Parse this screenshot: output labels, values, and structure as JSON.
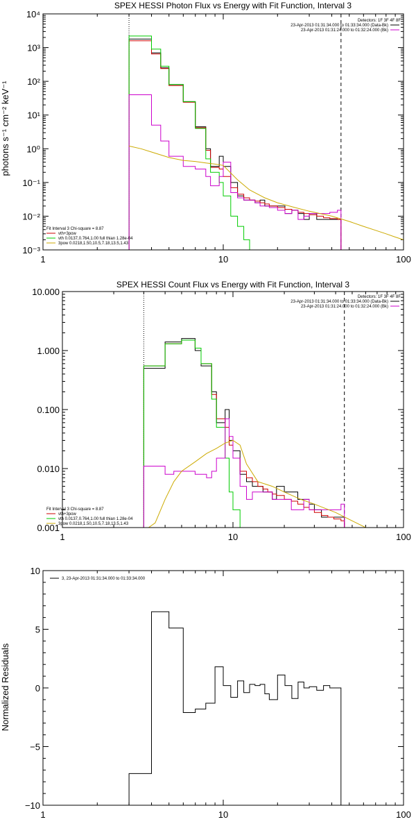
{
  "chart_data": [
    {
      "type": "line",
      "title": "SPEX HESSI Photon Flux vs Energy with Fit Function, Interval 3",
      "xlabel": "",
      "ylabel": "photons s⁻¹ cm⁻² keV⁻¹",
      "xscale": "log",
      "yscale": "log",
      "xlim": [
        1,
        100
      ],
      "ylim": [
        0.001,
        10000
      ],
      "x_ticks": [
        1,
        10,
        100
      ],
      "x_tick_labels": [
        "1",
        "10",
        "100"
      ],
      "y_ticks": [
        0.001,
        0.01,
        0.1,
        1,
        10,
        100,
        1000,
        10000
      ],
      "y_tick_labels": [
        "10⁻³",
        "10⁻²",
        "10⁻¹",
        "10⁰",
        "10¹",
        "10²",
        "10³",
        "10⁴"
      ],
      "vlines": [
        {
          "x": 3.0,
          "style": "dotted"
        },
        {
          "x": 45.0,
          "style": "dashed"
        }
      ],
      "legend_top_right": [
        "Detectors: 1F 3F 4F 8F",
        "23-Apr-2013 01:31:34.000 to 01:33:34.000 (Data-Bk)",
        "23-Apr-2013 01:31:24.000 to 01:32:24.000 (Bk)"
      ],
      "legend_top_right_colors": [
        "#000000",
        "#000000",
        "#cc00cc"
      ],
      "legend_bottom_left": {
        "header": "Fit Interval 3   Chi-square = 8.87",
        "items": [
          {
            "label": "vth+3pow",
            "color": "#cc0000"
          },
          {
            "label": "vth 0.0137,0.764,1.00  full thian 1.28e-04",
            "color": "#00cc00"
          },
          {
            "label": "3pow 0.0218,1.50,10.5,7.18,13.5,1.43",
            "color": "#ccaa00"
          }
        ]
      },
      "edges": [
        3.0,
        3.5,
        4.0,
        4.5,
        5.0,
        5.5,
        6.0,
        6.5,
        7.0,
        7.5,
        8.0,
        8.5,
        9.0,
        9.5,
        10.0,
        11.0,
        12.0,
        13.0,
        14.0,
        15.0,
        16.0,
        17.0,
        18.0,
        20.0,
        22.0,
        24.0,
        26.0,
        28.0,
        30.0,
        33.0,
        36.0,
        39.0,
        43.0,
        45.0
      ],
      "series": [
        {
          "name": "",
          "color": "#000000",
          "values": [
            1800,
            1800,
            700,
            250,
            80,
            80,
            25,
            25,
            4.5,
            4.5,
            1.0,
            0.3,
            0.3,
            0.6,
            0.3,
            0.1,
            0.04,
            0.03,
            0.03,
            0.025,
            0.03,
            0.02,
            0.02,
            0.02,
            0.012,
            0.015,
            0.012,
            0.008,
            0.012,
            0.008,
            0.008,
            0.008,
            0.008
          ]
        },
        {
          "name": "",
          "color": "#cc0000",
          "values": [
            1600,
            1600,
            650,
            240,
            75,
            75,
            24,
            24,
            4.2,
            4.2,
            0.9,
            0.28,
            0.28,
            0.25,
            0.15,
            0.07,
            0.045,
            0.035,
            0.03,
            0.028,
            0.025,
            0.023,
            0.02,
            0.018,
            0.016,
            0.015,
            0.013,
            0.012,
            0.011,
            0.01,
            0.009,
            0.0085,
            0.008
          ]
        },
        {
          "name": "",
          "color": "#00cc00",
          "values": [
            2200,
            2200,
            900,
            280,
            80,
            80,
            25,
            25,
            4.0,
            4.0,
            0.5,
            0.2,
            0.2,
            0.1,
            0.04,
            0.01,
            0.005,
            0.002,
            0.001
          ]
        },
        {
          "name": "",
          "color": "#cc00cc",
          "values": [
            40,
            40,
            5.0,
            1.7,
            0.6,
            0.6,
            0.3,
            0.3,
            0.25,
            0.25,
            0.15,
            0.08,
            0.08,
            0.15,
            0.4,
            0.05,
            0.035,
            0.03,
            0.03,
            0.025,
            0.02,
            0.02,
            0.018,
            0.015,
            0.012,
            0.015,
            0.008,
            0.01,
            0.012,
            0.012,
            0.012,
            0.013,
            0.015
          ]
        }
      ],
      "model_curve": {
        "color": "#ccaa00",
        "x": [
          3.0,
          3.5,
          4.0,
          5.0,
          6.0,
          7.0,
          8.0,
          9.0,
          10.0,
          12.0,
          14.0,
          17.0,
          20.0,
          25.0,
          30.0,
          40.0,
          50.0,
          60.0,
          70.0,
          80.0,
          90.0,
          100.0
        ],
        "y": [
          1.2,
          1.0,
          0.8,
          0.55,
          0.45,
          0.42,
          0.38,
          0.35,
          0.32,
          0.12,
          0.06,
          0.035,
          0.025,
          0.018,
          0.014,
          0.01,
          0.007,
          0.005,
          0.0038,
          0.003,
          0.0024,
          0.002
        ]
      }
    },
    {
      "type": "line",
      "title": "SPEX HESSI Count Flux vs Energy with Fit Function, Interval 3",
      "xlabel": "",
      "ylabel": "",
      "xscale": "log",
      "yscale": "log",
      "xlim": [
        1,
        100
      ],
      "ylim": [
        0.001,
        10
      ],
      "x_ticks": [
        1,
        10,
        100
      ],
      "x_tick_labels": [
        "1",
        "10",
        "100"
      ],
      "y_ticks": [
        0.001,
        0.01,
        0.1,
        1,
        10
      ],
      "y_tick_labels": [
        "0.001",
        "0.010",
        "0.100",
        "1.000",
        "10.000"
      ],
      "vlines": [
        {
          "x": 3.0,
          "style": "dotted"
        },
        {
          "x": 45.0,
          "style": "dashed"
        }
      ],
      "legend_top_right": [
        "Detectors: 1F 3F 4F 8F",
        "23-Apr-2013 01:31:34.000 to 01:33:34.000 (Data-Bk)",
        "23-Apr-2013 01:31:24.000 to 01:32:24.000 (Bk)"
      ],
      "legend_top_right_colors": [
        "#000000",
        "#000000",
        "#cc00cc"
      ],
      "legend_bottom_left": {
        "header": "Fit Interval 3   Chi-square = 8.87",
        "items": [
          {
            "label": "vth+3pow",
            "color": "#cc0000"
          },
          {
            "label": "vth 0.0137,0.764,1.00  full thian 1.28e-04",
            "color": "#00cc00"
          },
          {
            "label": "3pow 0.0218,1.50,10.5,7.18,13.5,1.43",
            "color": "#ccaa00"
          }
        ]
      },
      "edges": [
        3.0,
        3.5,
        4.0,
        4.5,
        5.0,
        5.5,
        6.0,
        6.5,
        7.0,
        7.5,
        8.0,
        8.5,
        9.0,
        9.5,
        10.0,
        11.0,
        12.0,
        13.0,
        14.0,
        15.0,
        16.0,
        17.0,
        18.0,
        20.0,
        22.0,
        24.0,
        26.0,
        28.0,
        30.0,
        33.0,
        36.0,
        39.0,
        43.0,
        45.0
      ],
      "series": [
        {
          "name": "",
          "color": "#000000",
          "values": [
            0.5,
            0.5,
            1.4,
            1.4,
            1.6,
            1.6,
            1.0,
            0.55,
            0.55,
            0.2,
            0.06,
            0.06,
            0.1,
            0.03,
            0.02,
            0.008,
            0.006,
            0.005,
            0.005,
            0.004,
            0.004,
            0.003,
            0.005,
            0.004,
            0.004,
            0.003,
            0.003,
            0.0025,
            0.002,
            0.0015,
            0.0015,
            0.0015,
            0.0015
          ]
        },
        {
          "name": "",
          "color": "#cc0000",
          "values": [
            0.55,
            0.55,
            1.3,
            1.3,
            1.5,
            1.5,
            1.1,
            0.6,
            0.6,
            0.18,
            0.07,
            0.07,
            0.05,
            0.025,
            0.015,
            0.009,
            0.007,
            0.006,
            0.005,
            0.0045,
            0.004,
            0.0037,
            0.0035,
            0.003,
            0.0028,
            0.0025,
            0.0022,
            0.002,
            0.0018,
            0.0016,
            0.0015,
            0.0014,
            0.0013
          ]
        },
        {
          "name": "",
          "color": "#00cc00",
          "values": [
            0.55,
            0.55,
            1.3,
            1.3,
            1.5,
            1.5,
            1.1,
            0.6,
            0.6,
            0.15,
            0.05,
            0.05,
            0.015,
            0.004,
            0.002,
            0.001
          ]
        },
        {
          "name": "",
          "color": "#cc00cc",
          "values": [
            0.011,
            0.011,
            0.008,
            0.009,
            0.009,
            0.009,
            0.008,
            0.008,
            0.007,
            0.009,
            0.015,
            0.015,
            0.07,
            0.035,
            0.015,
            0.005,
            0.003,
            0.004,
            0.004,
            0.004,
            0.004,
            0.003,
            0.003,
            0.003,
            0.002,
            0.002,
            0.003,
            0.002,
            0.002,
            0.002,
            0.002,
            0.002,
            0.0025
          ]
        }
      ],
      "model_curve": {
        "color": "#ccaa00",
        "x": [
          3.2,
          3.5,
          4.0,
          4.5,
          5.0,
          6.0,
          7.0,
          8.0,
          9.0,
          10.0,
          11.0,
          12.0,
          14.0,
          17.0,
          20.0,
          25.0,
          30.0,
          40.0,
          50.0,
          60.0,
          65.0
        ],
        "y": [
          0.0007,
          0.0012,
          0.003,
          0.006,
          0.009,
          0.013,
          0.018,
          0.022,
          0.027,
          0.03,
          0.025,
          0.012,
          0.006,
          0.005,
          0.004,
          0.003,
          0.0025,
          0.0018,
          0.0013,
          0.001,
          0.0009
        ]
      }
    },
    {
      "type": "line",
      "title": "",
      "xlabel": "",
      "ylabel": "Normalized Residuals",
      "xscale": "log",
      "yscale": "linear",
      "xlim": [
        1,
        100
      ],
      "ylim": [
        -10,
        10
      ],
      "x_ticks": [
        1,
        10,
        100
      ],
      "x_tick_labels": [
        "1",
        "10",
        "100"
      ],
      "y_ticks": [
        -10,
        -5,
        0,
        5,
        10
      ],
      "y_tick_labels": [
        "−10",
        "−5",
        "0",
        "5",
        "10"
      ],
      "legend": "3, 23-Apr-2013 01:31:34.000 to 01:33:34.000",
      "edges": [
        3.0,
        4.0,
        5.0,
        6.0,
        7.0,
        8.0,
        9.0,
        10.0,
        11.0,
        12.0,
        13.0,
        14.0,
        15.0,
        16.0,
        17.0,
        18.0,
        20.0,
        22.0,
        24.0,
        26.0,
        28.0,
        30.0,
        33.0,
        36.0,
        39.0,
        45.0
      ],
      "series": [
        {
          "name": "",
          "color": "#000000",
          "values": [
            -7.3,
            6.5,
            5.1,
            -2.1,
            -1.8,
            -1.3,
            1.8,
            0.2,
            -0.8,
            0.6,
            -0.4,
            0.3,
            0.2,
            0.3,
            -0.5,
            -1.0,
            1.1,
            0.2,
            -0.9,
            0.5,
            0.0,
            0.1,
            -0.2,
            0.2,
            0.0
          ]
        }
      ]
    }
  ]
}
